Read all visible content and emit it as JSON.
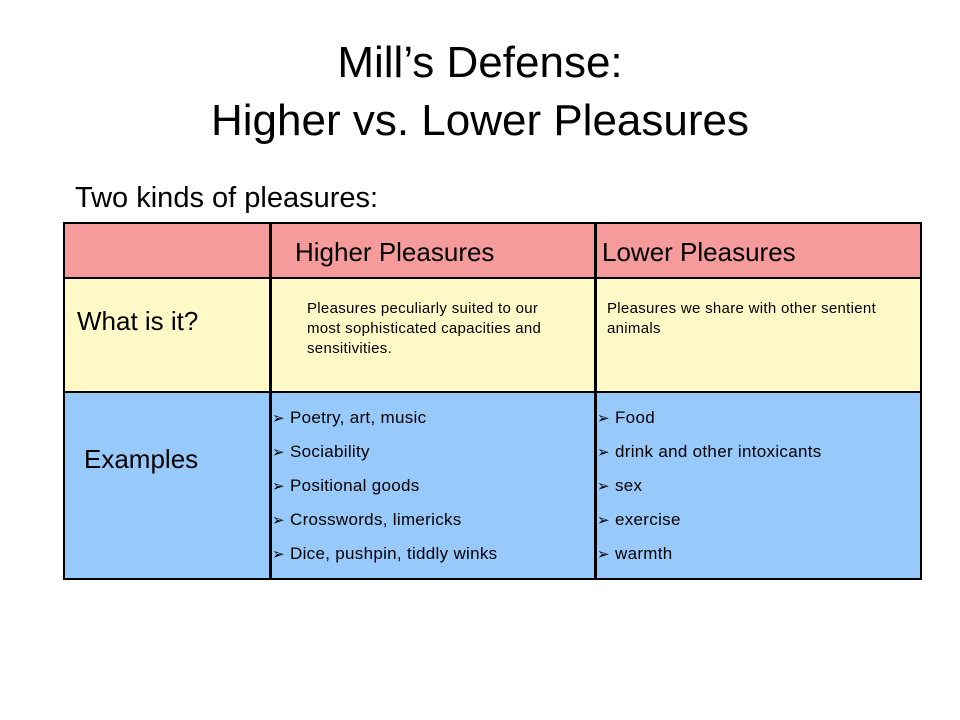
{
  "slide": {
    "title_line1": "Mill’s Defense:",
    "title_line2": "Higher vs. Lower Pleasures",
    "subtitle": "Two kinds of pleasures:"
  },
  "table": {
    "headers": [
      "",
      "Higher Pleasures",
      "Lower Pleasures"
    ],
    "what_row": {
      "label": "What is it?",
      "higher": "Pleasures peculiarly suited to our most sophisticated capacities and sensitivities.",
      "lower": "Pleasures we share with other sentient animals"
    },
    "examples_row": {
      "label": "Examples",
      "higher": [
        "Poetry, art, music",
        "Sociability",
        "Positional goods",
        "Crosswords, limericks",
        "Dice, pushpin, tiddly winks"
      ],
      "lower": [
        "Food",
        "drink and other intoxicants",
        "sex",
        "exercise",
        "warmth"
      ]
    },
    "bullet_glyph": "➢",
    "colors": {
      "header_row": "#f59b9b",
      "what_row": "#fff9c8",
      "examples_row": "#98c9fb"
    }
  }
}
